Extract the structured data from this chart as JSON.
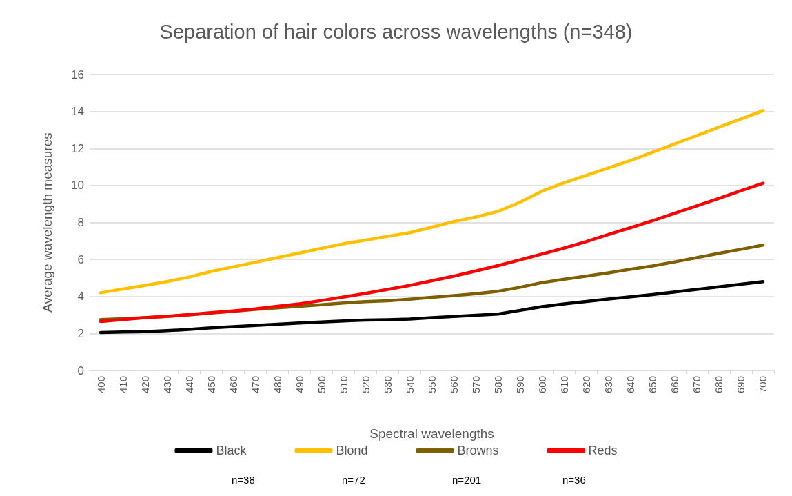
{
  "chart_data": {
    "type": "line",
    "title": "Separation of hair colors across wavelengths (n=348)",
    "xlabel": "Spectral wavelengths",
    "ylabel": "Average wavelength measures",
    "categories": [
      "400",
      "410",
      "420",
      "430",
      "440",
      "450",
      "460",
      "470",
      "480",
      "490",
      "500",
      "510",
      "520",
      "530",
      "540",
      "550",
      "560",
      "570",
      "580",
      "590",
      "600",
      "610",
      "620",
      "630",
      "640",
      "650",
      "660",
      "670",
      "680",
      "690",
      "700"
    ],
    "series": [
      {
        "name": "Black",
        "color": "#000000",
        "values": [
          2.05,
          2.08,
          2.1,
          2.15,
          2.22,
          2.3,
          2.37,
          2.43,
          2.5,
          2.56,
          2.62,
          2.68,
          2.72,
          2.74,
          2.78,
          2.85,
          2.92,
          2.98,
          3.05,
          3.25,
          3.45,
          3.6,
          3.73,
          3.86,
          3.98,
          4.1,
          4.24,
          4.38,
          4.52,
          4.66,
          4.8
        ]
      },
      {
        "name": "Blond",
        "color": "#ffc000",
        "values": [
          4.2,
          4.4,
          4.6,
          4.8,
          5.05,
          5.35,
          5.6,
          5.85,
          6.1,
          6.35,
          6.6,
          6.85,
          7.05,
          7.25,
          7.45,
          7.75,
          8.05,
          8.3,
          8.6,
          9.1,
          9.7,
          10.15,
          10.55,
          10.95,
          11.35,
          11.8,
          12.25,
          12.7,
          13.15,
          13.6,
          14.05
        ]
      },
      {
        "name": "Browns",
        "color": "#7f6000",
        "values": [
          2.75,
          2.8,
          2.85,
          2.92,
          3.0,
          3.1,
          3.2,
          3.3,
          3.38,
          3.47,
          3.55,
          3.65,
          3.72,
          3.77,
          3.85,
          3.95,
          4.05,
          4.15,
          4.28,
          4.5,
          4.75,
          4.93,
          5.1,
          5.28,
          5.47,
          5.65,
          5.87,
          6.1,
          6.33,
          6.55,
          6.78
        ]
      },
      {
        "name": "Reds",
        "color": "#ff0000",
        "values": [
          2.65,
          2.75,
          2.85,
          2.93,
          3.02,
          3.12,
          3.22,
          3.33,
          3.47,
          3.6,
          3.78,
          3.97,
          4.17,
          4.38,
          4.6,
          4.85,
          5.1,
          5.38,
          5.67,
          5.98,
          6.3,
          6.62,
          6.97,
          7.35,
          7.72,
          8.1,
          8.5,
          8.9,
          9.3,
          9.72,
          10.12
        ]
      }
    ],
    "annotations": [
      "n=38",
      "n=72",
      "n=201",
      "n=36"
    ],
    "ylim": [
      0,
      16
    ],
    "yticks": [
      0,
      2,
      4,
      6,
      8,
      10,
      12,
      14,
      16
    ],
    "grid": "y",
    "legend": "bottom",
    "marker": "none",
    "line_style": "solid"
  }
}
